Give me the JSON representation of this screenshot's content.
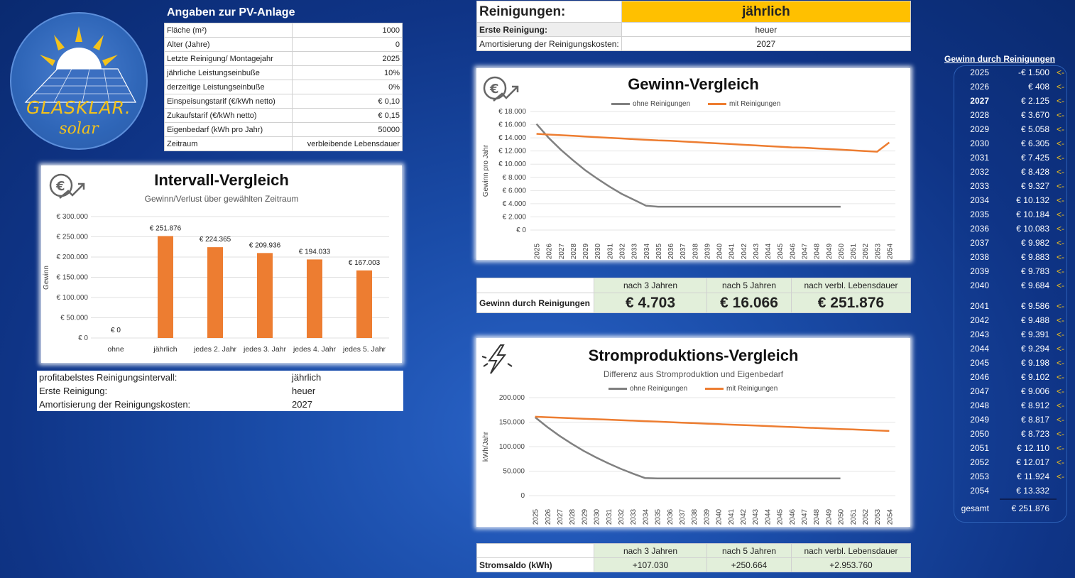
{
  "logo": {
    "line1": "GLASKLAR.",
    "line2": "solar"
  },
  "pv": {
    "title": "Angaben zur PV-Anlage",
    "rows": [
      {
        "label": "Fläche (m²)",
        "value": "1000"
      },
      {
        "label": "Alter (Jahre)",
        "value": "0"
      },
      {
        "label": "Letzte Reinigung/ Montagejahr",
        "value": "2025"
      },
      {
        "label": "jährliche Leistungseinbuße",
        "value": "10%"
      },
      {
        "label": "derzeitige Leistungseinbuße",
        "value": "0%"
      },
      {
        "label": "Einspeisungstarif (€/kWh netto)",
        "value": "€ 0,10"
      },
      {
        "label": "Zukaufstarif (€/kWh netto)",
        "value": "€ 0,15"
      },
      {
        "label": "Eigenbedarf (kWh pro Jahr)",
        "value": "50000"
      },
      {
        "label": "Zeitraum",
        "value": "verbleibende Lebensdauer"
      }
    ]
  },
  "cleaning": {
    "label": "Reinigungen:",
    "value": "jährlich",
    "first_label": "Erste Reinigung:",
    "first_value": "heuer",
    "amort_label": "Amortisierung der Reinigungskosten:",
    "amort_value": "2027"
  },
  "summary": {
    "rows": [
      {
        "label": "profitabelstes Reinigungsintervall:",
        "value": "jährlich"
      },
      {
        "label": "Erste Reinigung:",
        "value": "heuer"
      },
      {
        "label": "Amortisierung der Reinigungskosten:",
        "value": "2027"
      }
    ]
  },
  "gain_table": {
    "headers": [
      "nach 3 Jahren",
      "nach 5 Jahren",
      "nach verbl. Lebensdauer"
    ],
    "row_label": "Gewinn durch Reinigungen",
    "values": [
      "€ 4.703",
      "€ 16.066",
      "€ 251.876"
    ]
  },
  "power_table": {
    "headers": [
      "nach 3 Jahren",
      "nach 5 Jahren",
      "nach verbl. Lebensdauer"
    ],
    "row_label": "Stromsaldo (kWh)",
    "values": [
      "+107.030",
      "+250.664",
      "+2.953.760"
    ]
  },
  "right_panel": {
    "title": "Gewinn durch Reinigungen",
    "arrow": "<-",
    "rows": [
      {
        "year": "2025",
        "value": "-€ 1.500"
      },
      {
        "year": "2026",
        "value": "€ 408"
      },
      {
        "year": "2027",
        "value": "€ 2.125"
      },
      {
        "year": "2028",
        "value": "€ 3.670"
      },
      {
        "year": "2029",
        "value": "€ 5.058"
      },
      {
        "year": "2030",
        "value": "€ 6.305"
      },
      {
        "year": "2031",
        "value": "€ 7.425"
      },
      {
        "year": "2032",
        "value": "€ 8.428"
      },
      {
        "year": "2033",
        "value": "€ 9.327"
      },
      {
        "year": "2034",
        "value": "€ 10.132"
      },
      {
        "year": "2035",
        "value": "€ 10.184"
      },
      {
        "year": "2036",
        "value": "€ 10.083"
      },
      {
        "year": "2037",
        "value": "€ 9.982"
      },
      {
        "year": "2038",
        "value": "€ 9.883"
      },
      {
        "year": "2039",
        "value": "€ 9.783"
      },
      {
        "year": "2040",
        "value": "€ 9.684"
      },
      {
        "year": "2041",
        "value": "€ 9.586"
      },
      {
        "year": "2042",
        "value": "€ 9.488"
      },
      {
        "year": "2043",
        "value": "€ 9.391"
      },
      {
        "year": "2044",
        "value": "€ 9.294"
      },
      {
        "year": "2045",
        "value": "€ 9.198"
      },
      {
        "year": "2046",
        "value": "€ 9.102"
      },
      {
        "year": "2047",
        "value": "€ 9.006"
      },
      {
        "year": "2048",
        "value": "€ 8.912"
      },
      {
        "year": "2049",
        "value": "€ 8.817"
      },
      {
        "year": "2050",
        "value": "€ 8.723"
      },
      {
        "year": "2051",
        "value": "€ 12.110"
      },
      {
        "year": "2052",
        "value": "€ 12.017"
      },
      {
        "year": "2053",
        "value": "€ 11.924"
      },
      {
        "year": "2054",
        "value": "€ 13.332"
      }
    ],
    "total_label": "gesamt",
    "total_value": "€ 251.876"
  },
  "colors": {
    "orange": "#ed7d31",
    "gray": "#808080",
    "yellow": "#ffc000",
    "green": "#e2efda"
  },
  "chart_data": [
    {
      "type": "bar",
      "title": "Intervall-Vergleich",
      "subtitle": "Gewinn/Verlust über gewählten Zeitraum",
      "ylabel": "Gewinn",
      "categories": [
        "ohne",
        "jährlich",
        "jedes 2. Jahr",
        "jedes 3. Jahr",
        "jedes 4. Jahr",
        "jedes 5. Jahr"
      ],
      "values": [
        0,
        251876,
        224365,
        209936,
        194033,
        167003
      ],
      "data_labels": [
        "€ 0",
        "€ 251.876",
        "€ 224.365",
        "€ 209.936",
        "€ 194.033",
        "€ 167.003"
      ],
      "ylim": [
        0,
        300000
      ],
      "yticks": [
        "€ 0",
        "€ 50.000",
        "€ 100.000",
        "€ 150.000",
        "€ 200.000",
        "€ 250.000",
        "€ 300.000"
      ],
      "color": "#ed7d31"
    },
    {
      "type": "line",
      "title": "Gewinn-Vergleich",
      "ylabel": "Gewinn pro Jahr",
      "x": [
        "2025",
        "2026",
        "2027",
        "2028",
        "2029",
        "2030",
        "2031",
        "2032",
        "2033",
        "2034",
        "2035",
        "2036",
        "2037",
        "2038",
        "2039",
        "2040",
        "2041",
        "2042",
        "2043",
        "2044",
        "2045",
        "2046",
        "2047",
        "2048",
        "2049",
        "2050",
        "2051",
        "2052",
        "2053",
        "2054"
      ],
      "ylim": [
        0,
        18000
      ],
      "yticks": [
        "€ 0",
        "€ 2.000",
        "€ 4.000",
        "€ 6.000",
        "€ 8.000",
        "€ 10.000",
        "€ 12.000",
        "€ 14.000",
        "€ 16.000",
        "€ 18.000"
      ],
      "series": [
        {
          "name": "ohne Reinigungen",
          "color": "#808080",
          "values": [
            16100,
            14000,
            12200,
            10600,
            9100,
            7800,
            6600,
            5500,
            4600,
            3700,
            3550,
            3550,
            3550,
            3550,
            3550,
            3550,
            3550,
            3550,
            3550,
            3550,
            3550,
            3550,
            3550,
            3550,
            3550,
            3550,
            null,
            null,
            null,
            null
          ]
        },
        {
          "name": "mit Reinigungen",
          "color": "#ed7d31",
          "values": [
            14600,
            14500,
            14400,
            14300,
            14200,
            14100,
            14000,
            13900,
            13800,
            13700,
            13600,
            13550,
            13450,
            13350,
            13250,
            13150,
            13050,
            12950,
            12850,
            12750,
            12650,
            12550,
            12500,
            12400,
            12300,
            12200,
            12100,
            12000,
            11900,
            13300
          ]
        }
      ]
    },
    {
      "type": "line",
      "title": "Stromproduktions-Vergleich",
      "subtitle": "Differenz aus Stromproduktion und Eigenbedarf",
      "ylabel": "kWh/Jahr",
      "x": [
        "2025",
        "2026",
        "2027",
        "2028",
        "2029",
        "2030",
        "2031",
        "2032",
        "2033",
        "2034",
        "2035",
        "2036",
        "2037",
        "2038",
        "2039",
        "2040",
        "2041",
        "2042",
        "2043",
        "2044",
        "2045",
        "2046",
        "2047",
        "2048",
        "2049",
        "2050",
        "2051",
        "2052",
        "2053",
        "2054"
      ],
      "ylim": [
        0,
        200000
      ],
      "yticks": [
        "0",
        "50.000",
        "100.000",
        "150.000",
        "200.000"
      ],
      "series": [
        {
          "name": "ohne Reinigungen",
          "color": "#808080",
          "values": [
            160000,
            140000,
            122000,
            106000,
            91000,
            78000,
            66000,
            55000,
            45000,
            36000,
            35000,
            35000,
            35000,
            35000,
            35000,
            35000,
            35000,
            35000,
            35000,
            35000,
            35000,
            35000,
            35000,
            35000,
            35000,
            35000,
            null,
            null,
            null,
            null
          ]
        },
        {
          "name": "mit Reinigungen",
          "color": "#ed7d31",
          "values": [
            161000,
            160000,
            159000,
            158000,
            157000,
            156000,
            155000,
            154000,
            153000,
            152000,
            151000,
            150000,
            149000,
            148000,
            147000,
            146000,
            145000,
            144000,
            143000,
            142000,
            141000,
            140000,
            139000,
            138000,
            137000,
            136000,
            135000,
            134000,
            133000,
            132000
          ]
        }
      ]
    }
  ]
}
